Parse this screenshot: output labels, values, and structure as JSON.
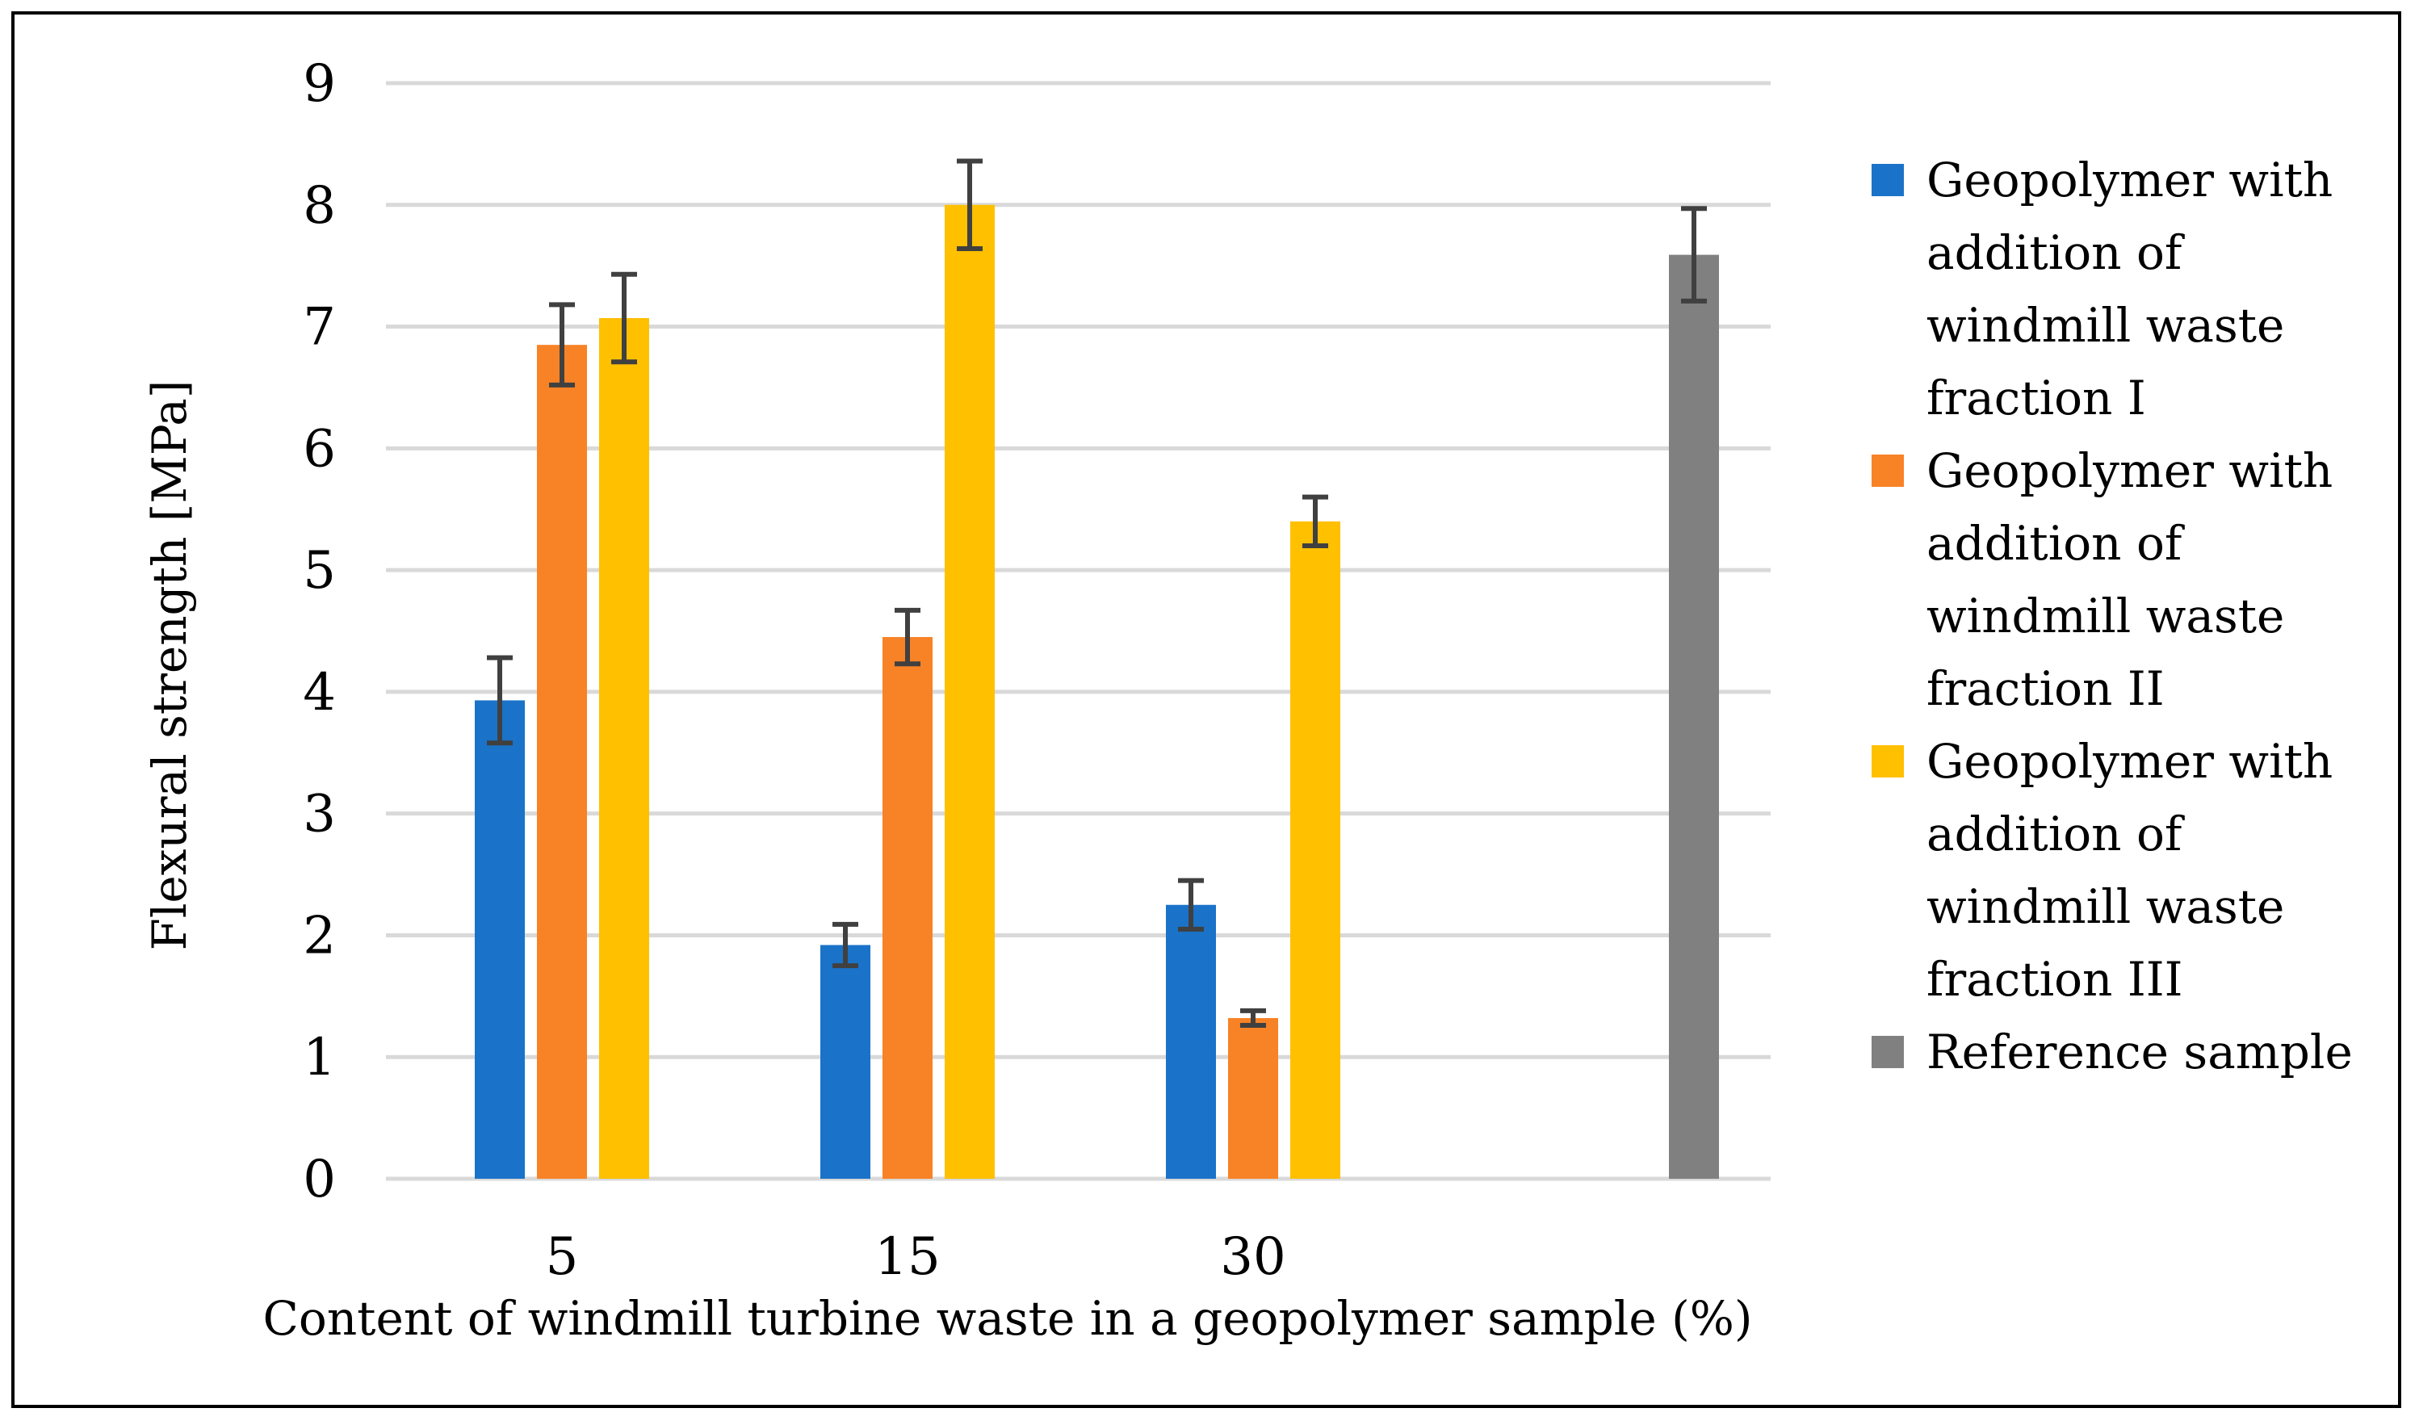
{
  "chart_data": {
    "type": "bar",
    "title": "",
    "xlabel": "Content of windmill turbine waste in a geopolymer sample (%)",
    "ylabel": "Flexural strength [MPa]",
    "ylim": [
      0,
      9
    ],
    "yticks": [
      "0",
      "1",
      "2",
      "3",
      "4",
      "5",
      "6",
      "7",
      "8",
      "9"
    ],
    "grid": true,
    "legend_position": "right",
    "categories": [
      "5",
      "15",
      "30",
      ""
    ],
    "series": [
      {
        "name": "Geopolymer with addition of windmill waste fraction I",
        "color": "#1a73c8",
        "values": [
          3.93,
          1.92,
          2.25,
          null
        ],
        "errors": [
          0.35,
          0.17,
          0.2,
          null
        ]
      },
      {
        "name": "Geopolymer with addition of windmill waste fraction II",
        "color": "#f88226",
        "values": [
          6.85,
          4.45,
          1.32,
          null
        ],
        "errors": [
          0.33,
          0.22,
          0.06,
          null
        ]
      },
      {
        "name": "Geopolymer with addition of windmill waste fraction III",
        "color": "#ffc000",
        "values": [
          7.07,
          8.0,
          5.4,
          null
        ],
        "errors": [
          0.36,
          0.36,
          0.2,
          null
        ]
      },
      {
        "name": "Reference sample",
        "color": "#808080",
        "values": [
          null,
          null,
          null,
          7.59
        ],
        "errors": [
          null,
          null,
          null,
          0.38
        ]
      }
    ]
  }
}
